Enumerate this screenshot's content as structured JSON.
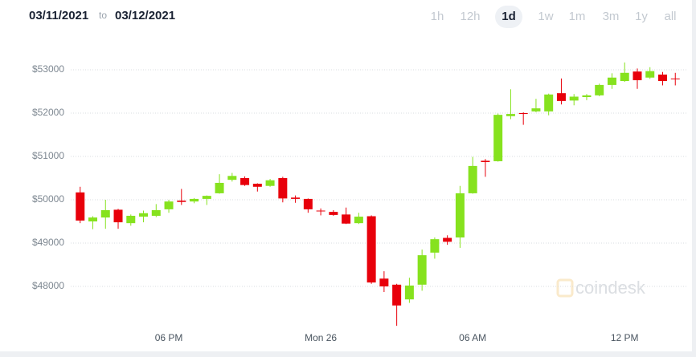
{
  "header": {
    "from": "03/11/2021",
    "to_label": "to",
    "to": "03/12/2021"
  },
  "ranges": [
    "1h",
    "12h",
    "1d",
    "1w",
    "1m",
    "3m",
    "1y",
    "all"
  ],
  "selected_range": 2,
  "watermark": "coindesk",
  "chart_data": {
    "type": "candlestick",
    "x": [
      14.5,
      15,
      15.5,
      16,
      16.5,
      17,
      17.5,
      18,
      18.5,
      19,
      19.5,
      20,
      20.5,
      21,
      21.5,
      22,
      22.5,
      23,
      23.5,
      24,
      24.5,
      25,
      25.5,
      26,
      26.5,
      27,
      27.5,
      28,
      28.5,
      29,
      29.5,
      30,
      30.5,
      31,
      31.5,
      32,
      32.5,
      33,
      33.5,
      34,
      34.5,
      35,
      35.5,
      36,
      36.5,
      37,
      37.5,
      38
    ],
    "open": [
      50170,
      49500,
      49590,
      49770,
      49460,
      49610,
      49630,
      49780,
      49980,
      49960,
      50020,
      50150,
      50460,
      50500,
      50370,
      50320,
      50500,
      50050,
      50020,
      49750,
      49720,
      49660,
      49460,
      49620,
      48180,
      48040,
      47700,
      48040,
      48780,
      49120,
      49130,
      50150,
      50900,
      50890,
      51930,
      52000,
      52040,
      52040,
      52460,
      52290,
      52370,
      52410,
      52650,
      52740,
      52960,
      52820,
      52890,
      52800
    ],
    "high": [
      50300,
      49620,
      50000,
      49790,
      49660,
      49750,
      49900,
      50000,
      50250,
      50040,
      50100,
      50590,
      50620,
      50540,
      50380,
      50480,
      50530,
      50100,
      50030,
      49800,
      49760,
      49820,
      49700,
      49640,
      48350,
      48060,
      48200,
      48850,
      49130,
      49180,
      50320,
      50990,
      50940,
      51990,
      52550,
      52020,
      52330,
      52450,
      52800,
      52440,
      52440,
      52680,
      52920,
      53170,
      53030,
      53060,
      52950,
      52930
    ],
    "low": [
      49460,
      49320,
      49330,
      49330,
      49400,
      49480,
      49600,
      49700,
      49880,
      49920,
      49880,
      50140,
      50420,
      50320,
      50190,
      50300,
      49940,
      49930,
      49700,
      49640,
      49630,
      49440,
      49440,
      48060,
      47870,
      47090,
      47620,
      47900,
      48640,
      48960,
      48890,
      50140,
      50530,
      50880,
      51860,
      51730,
      52020,
      51950,
      52200,
      52180,
      52300,
      52390,
      52560,
      52720,
      52560,
      52790,
      52640,
      52640
    ],
    "close": [
      49520,
      49590,
      49760,
      49480,
      49630,
      49690,
      49760,
      49960,
      49950,
      50020,
      50090,
      50390,
      50550,
      50340,
      50300,
      50450,
      50030,
      50020,
      49780,
      49740,
      49650,
      49450,
      49610,
      48090,
      48000,
      47560,
      48020,
      48720,
      49090,
      49030,
      50150,
      50780,
      50870,
      51960,
      51980,
      51980,
      52110,
      52430,
      52280,
      52380,
      52410,
      52650,
      52820,
      52930,
      52760,
      52970,
      52740,
      52790
    ],
    "up_color": "#86e21e",
    "down_color": "#e8000b",
    "xlim": [
      14,
      38.5
    ],
    "xticks": [
      {
        "value": 18,
        "label": "06 PM"
      },
      {
        "value": 24,
        "label": "Mon 26"
      },
      {
        "value": 30,
        "label": "06 AM"
      },
      {
        "value": 36,
        "label": "12 PM"
      }
    ],
    "ylim": [
      47000,
      53500
    ],
    "yticks": [
      {
        "value": 48000,
        "label": "$48000"
      },
      {
        "value": 49000,
        "label": "$49000"
      },
      {
        "value": 50000,
        "label": "$50000"
      },
      {
        "value": 51000,
        "label": "$51000"
      },
      {
        "value": 52000,
        "label": "$52000"
      },
      {
        "value": 53000,
        "label": "$53000"
      }
    ],
    "grid": true
  }
}
